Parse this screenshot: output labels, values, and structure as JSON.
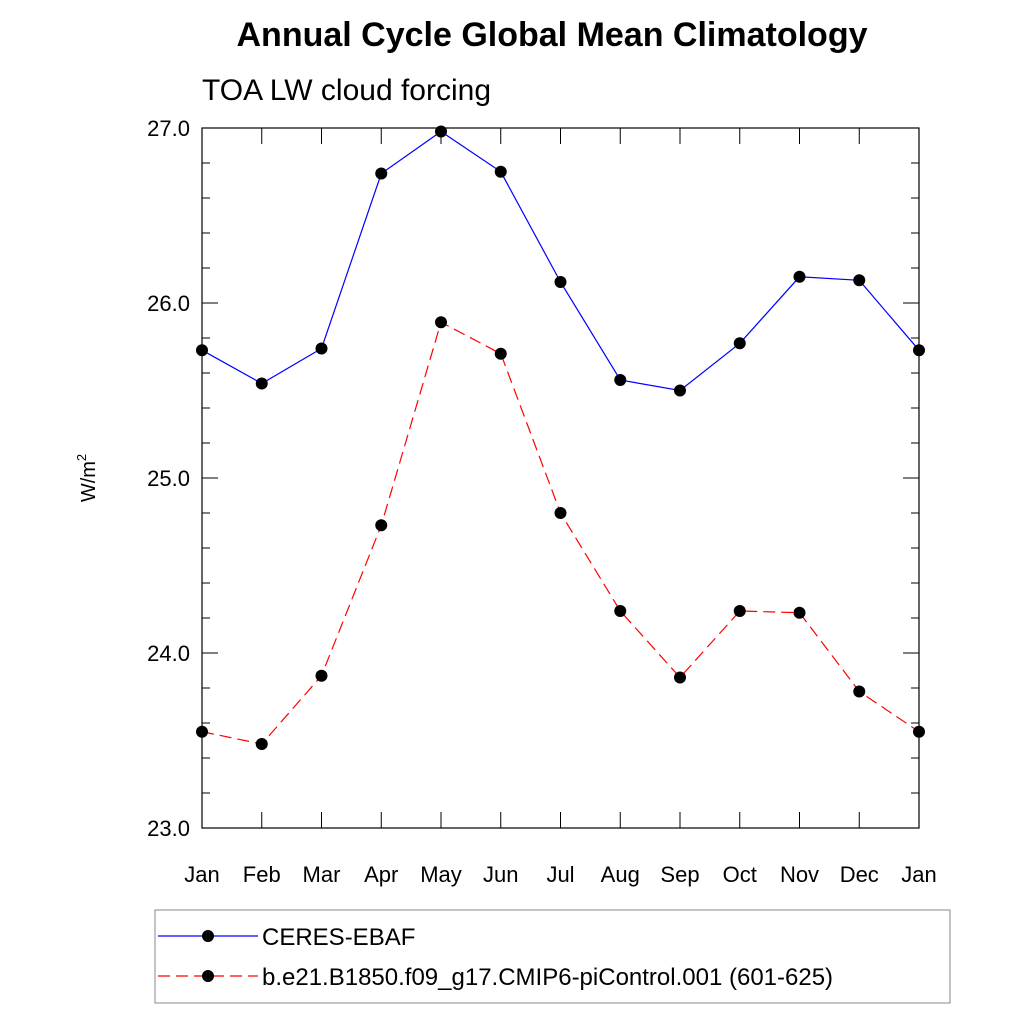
{
  "chart_data": {
    "type": "line",
    "title": "Annual Cycle Global Mean Climatology",
    "subtitle": "TOA LW cloud forcing",
    "xlabel": "",
    "ylabel": "W/m",
    "ylabel_superscript": "2",
    "categories": [
      "Jan",
      "Feb",
      "Mar",
      "Apr",
      "May",
      "Jun",
      "Jul",
      "Aug",
      "Sep",
      "Oct",
      "Nov",
      "Dec",
      "Jan"
    ],
    "ylim": [
      23.0,
      27.0
    ],
    "yticks": [
      "23.0",
      "24.0",
      "25.0",
      "26.0",
      "27.0"
    ],
    "grid": false,
    "legend_position": "bottom",
    "series": [
      {
        "name": "CERES-EBAF",
        "color": "#0000ff",
        "line_style": "solid",
        "marker": "filled-circle",
        "values": [
          25.73,
          25.54,
          25.74,
          26.74,
          26.98,
          26.75,
          26.12,
          25.56,
          25.5,
          25.77,
          26.15,
          26.13,
          25.73
        ]
      },
      {
        "name": "b.e21.B1850.f09_g17.CMIP6-piControl.001 (601-625)",
        "color": "#ff0000",
        "line_style": "dashed",
        "marker": "filled-circle",
        "values": [
          23.55,
          23.48,
          23.87,
          24.73,
          25.89,
          25.71,
          24.8,
          24.24,
          23.86,
          24.24,
          24.23,
          23.78,
          23.55
        ]
      }
    ]
  }
}
